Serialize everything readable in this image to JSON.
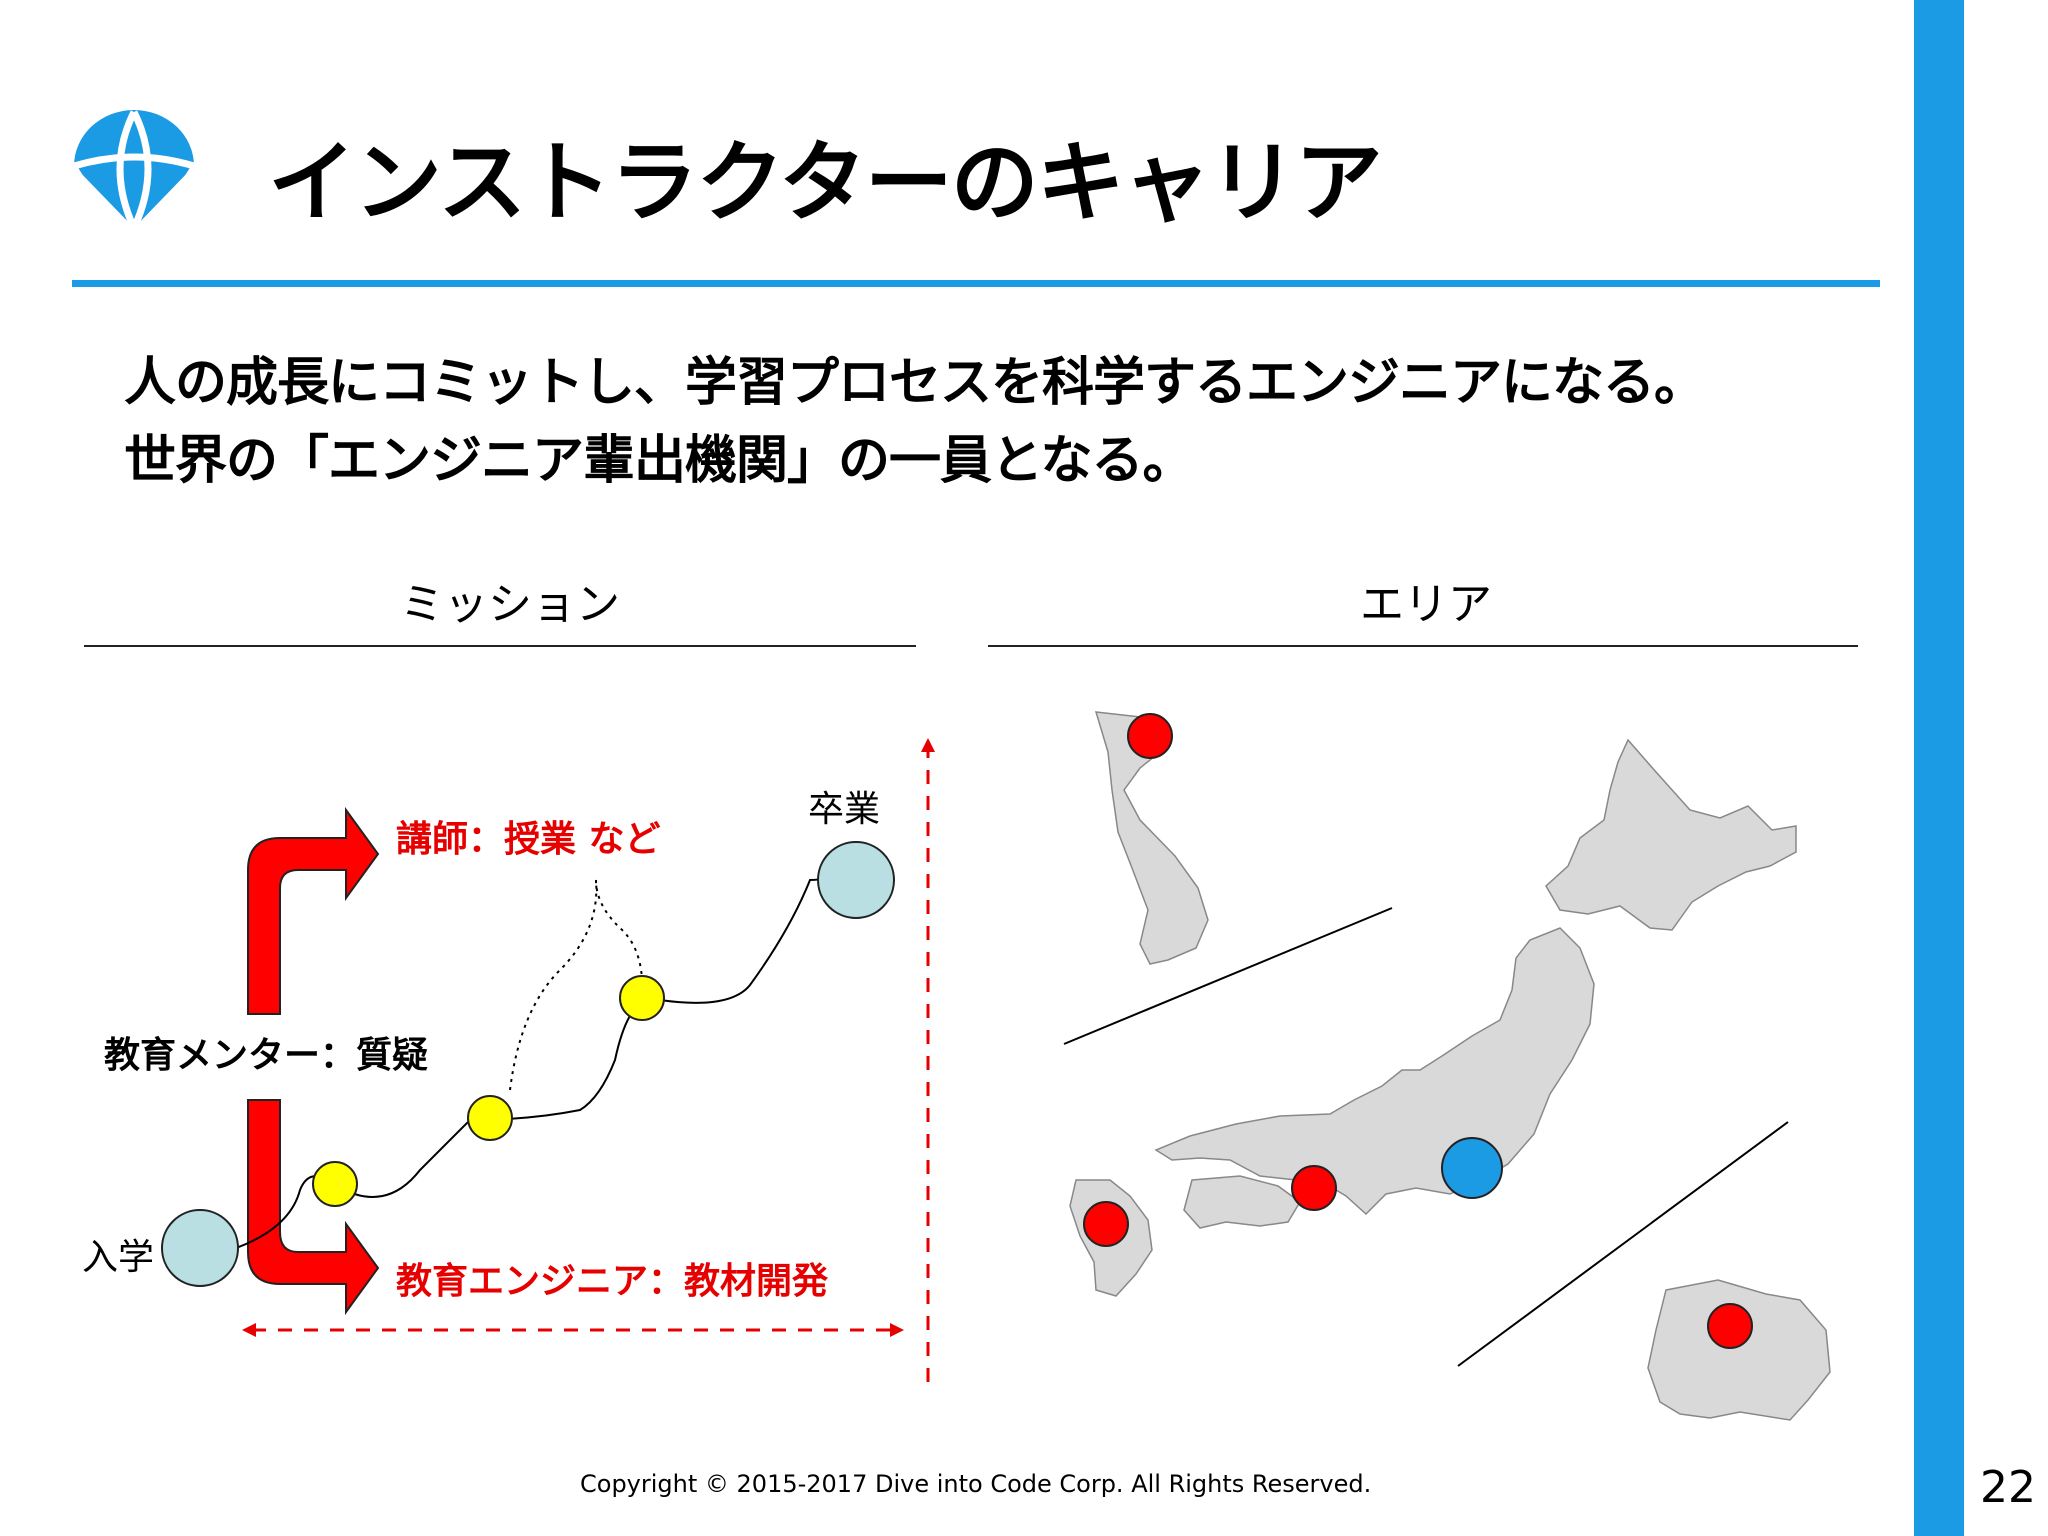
{
  "slide": {
    "title": "インストラクターのキャリア",
    "lead_line_1": "人の成長にコミットし、学習プロセスを科学するエンジニアになる。",
    "lead_line_2": "世界の「エンジニア輩出機関」の一員となる。",
    "page_number": "22",
    "copyright": "Copyright © 2015-2017 Dive into Code Corp. All Rights Reserved."
  },
  "mission": {
    "heading": "ミッション",
    "graduate_label": "卒業",
    "enroll_label": "入学",
    "instructor_label": "講師：授業 など",
    "mentor_label": "教育メンター：質疑",
    "engineer_label": "教育エンジニア：教材開発"
  },
  "area": {
    "heading": "エリア"
  },
  "colors": {
    "accent_blue": "#1b9be3",
    "arrow_red": "#ff0000",
    "label_red": "#e60000",
    "milestone_yellow": "#ffff00",
    "node_light_blue": "#b9dfe3",
    "map_gray": "#d9d9d9"
  },
  "icons": [
    "globe-parachute-logo-icon"
  ]
}
